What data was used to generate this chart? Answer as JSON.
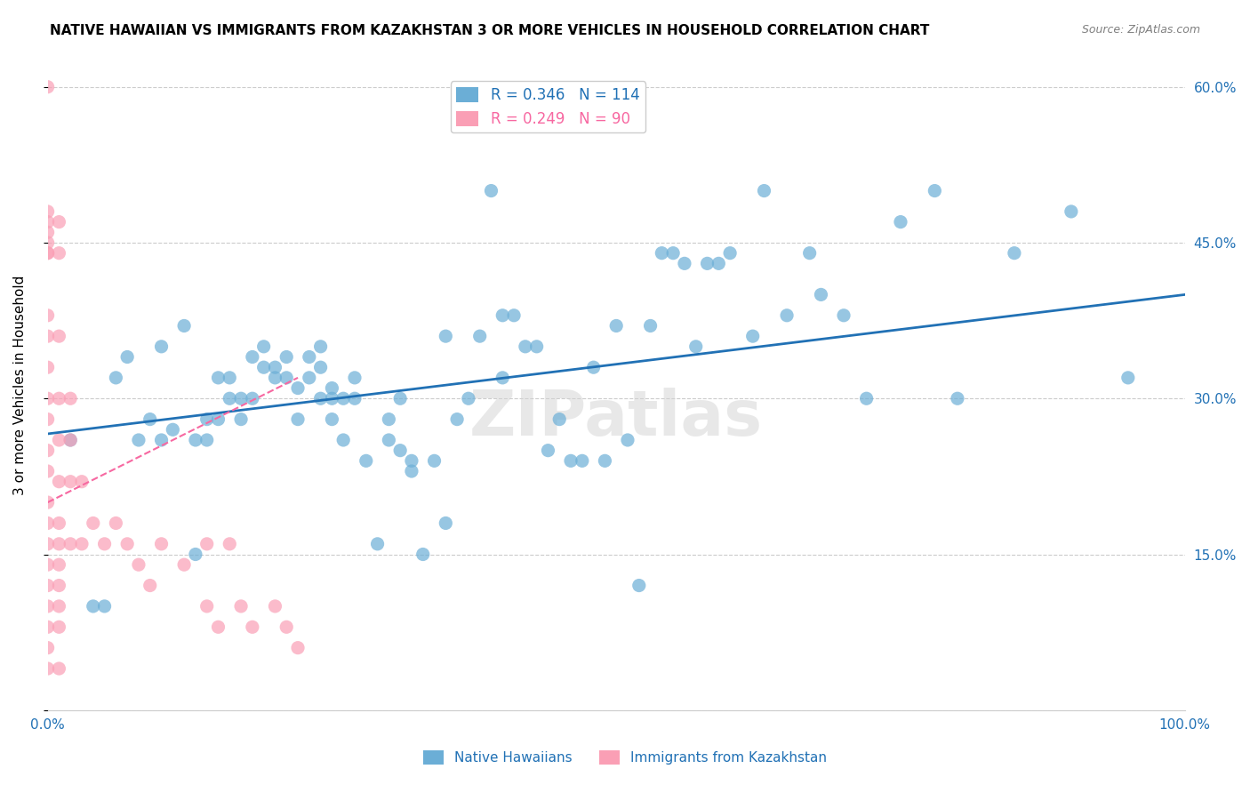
{
  "title": "NATIVE HAWAIIAN VS IMMIGRANTS FROM KAZAKHSTAN 3 OR MORE VEHICLES IN HOUSEHOLD CORRELATION CHART",
  "source": "Source: ZipAtlas.com",
  "xlabel_bottom": "",
  "ylabel": "3 or more Vehicles in Household",
  "xmin": 0.0,
  "xmax": 1.0,
  "ymin": 0.0,
  "ymax": 0.625,
  "xticks": [
    0.0,
    0.2,
    0.4,
    0.6,
    0.8,
    1.0
  ],
  "xticklabels": [
    "0.0%",
    "",
    "",
    "",
    "",
    "100.0%"
  ],
  "ytick_positions": [
    0.0,
    0.15,
    0.3,
    0.45,
    0.6
  ],
  "yticklabels_right": [
    "",
    "15.0%",
    "30.0%",
    "45.0%",
    "60.0%"
  ],
  "blue_color": "#6baed6",
  "pink_color": "#fa9fb5",
  "blue_line_color": "#2171b5",
  "pink_line_color": "#f768a1",
  "legend_blue_R": "R = 0.346",
  "legend_blue_N": "N = 114",
  "legend_pink_R": "R = 0.249",
  "legend_pink_N": "N = 90",
  "legend_label_blue": "Native Hawaiians",
  "legend_label_pink": "Immigrants from Kazakhstan",
  "watermark": "ZIPatlas",
  "title_fontsize": 11,
  "source_fontsize": 9,
  "axis_label_color": "#2171b5",
  "tick_color": "#2171b5",
  "blue_scatter_x": [
    0.02,
    0.04,
    0.05,
    0.06,
    0.07,
    0.08,
    0.09,
    0.1,
    0.1,
    0.11,
    0.12,
    0.13,
    0.13,
    0.14,
    0.14,
    0.15,
    0.15,
    0.16,
    0.16,
    0.17,
    0.17,
    0.18,
    0.18,
    0.19,
    0.19,
    0.2,
    0.2,
    0.21,
    0.21,
    0.22,
    0.22,
    0.23,
    0.23,
    0.24,
    0.24,
    0.24,
    0.25,
    0.25,
    0.25,
    0.26,
    0.26,
    0.27,
    0.27,
    0.28,
    0.29,
    0.3,
    0.3,
    0.31,
    0.31,
    0.32,
    0.32,
    0.33,
    0.34,
    0.35,
    0.35,
    0.36,
    0.37,
    0.38,
    0.39,
    0.4,
    0.4,
    0.41,
    0.42,
    0.43,
    0.44,
    0.45,
    0.46,
    0.47,
    0.48,
    0.49,
    0.5,
    0.51,
    0.52,
    0.53,
    0.54,
    0.55,
    0.56,
    0.57,
    0.58,
    0.59,
    0.6,
    0.62,
    0.63,
    0.65,
    0.67,
    0.68,
    0.7,
    0.72,
    0.75,
    0.78,
    0.8,
    0.85,
    0.9,
    0.95
  ],
  "blue_scatter_y": [
    0.26,
    0.1,
    0.1,
    0.32,
    0.34,
    0.26,
    0.28,
    0.35,
    0.26,
    0.27,
    0.37,
    0.26,
    0.15,
    0.28,
    0.26,
    0.32,
    0.28,
    0.3,
    0.32,
    0.28,
    0.3,
    0.34,
    0.3,
    0.35,
    0.33,
    0.32,
    0.33,
    0.32,
    0.34,
    0.31,
    0.28,
    0.34,
    0.32,
    0.33,
    0.3,
    0.35,
    0.3,
    0.28,
    0.31,
    0.3,
    0.26,
    0.3,
    0.32,
    0.24,
    0.16,
    0.26,
    0.28,
    0.3,
    0.25,
    0.24,
    0.23,
    0.15,
    0.24,
    0.18,
    0.36,
    0.28,
    0.3,
    0.36,
    0.5,
    0.38,
    0.32,
    0.38,
    0.35,
    0.35,
    0.25,
    0.28,
    0.24,
    0.24,
    0.33,
    0.24,
    0.37,
    0.26,
    0.12,
    0.37,
    0.44,
    0.44,
    0.43,
    0.35,
    0.43,
    0.43,
    0.44,
    0.36,
    0.5,
    0.38,
    0.44,
    0.4,
    0.38,
    0.3,
    0.47,
    0.5,
    0.3,
    0.44,
    0.48,
    0.32
  ],
  "pink_scatter_x": [
    0.0,
    0.0,
    0.0,
    0.0,
    0.0,
    0.0,
    0.0,
    0.0,
    0.0,
    0.0,
    0.0,
    0.0,
    0.0,
    0.0,
    0.0,
    0.0,
    0.0,
    0.0,
    0.0,
    0.0,
    0.0,
    0.0,
    0.0,
    0.01,
    0.01,
    0.01,
    0.01,
    0.01,
    0.01,
    0.01,
    0.01,
    0.01,
    0.01,
    0.01,
    0.01,
    0.01,
    0.02,
    0.02,
    0.02,
    0.02,
    0.03,
    0.03,
    0.04,
    0.05,
    0.06,
    0.07,
    0.08,
    0.09,
    0.1,
    0.12,
    0.14,
    0.15,
    0.17,
    0.18,
    0.2,
    0.21,
    0.22,
    0.14,
    0.16
  ],
  "pink_scatter_y": [
    0.6,
    0.48,
    0.47,
    0.46,
    0.45,
    0.44,
    0.44,
    0.38,
    0.36,
    0.33,
    0.3,
    0.28,
    0.25,
    0.23,
    0.2,
    0.18,
    0.16,
    0.14,
    0.12,
    0.1,
    0.08,
    0.06,
    0.04,
    0.47,
    0.44,
    0.36,
    0.3,
    0.26,
    0.22,
    0.18,
    0.16,
    0.14,
    0.12,
    0.1,
    0.08,
    0.04,
    0.3,
    0.26,
    0.22,
    0.16,
    0.22,
    0.16,
    0.18,
    0.16,
    0.18,
    0.16,
    0.14,
    0.12,
    0.16,
    0.14,
    0.1,
    0.08,
    0.1,
    0.08,
    0.1,
    0.08,
    0.06,
    0.16,
    0.16
  ],
  "blue_line_x": [
    0.0,
    1.0
  ],
  "blue_line_y": [
    0.266,
    0.4
  ],
  "pink_line_x": [
    0.0,
    0.22
  ],
  "pink_line_y": [
    0.2,
    0.32
  ],
  "grid_color": "#cccccc",
  "background_color": "#ffffff"
}
